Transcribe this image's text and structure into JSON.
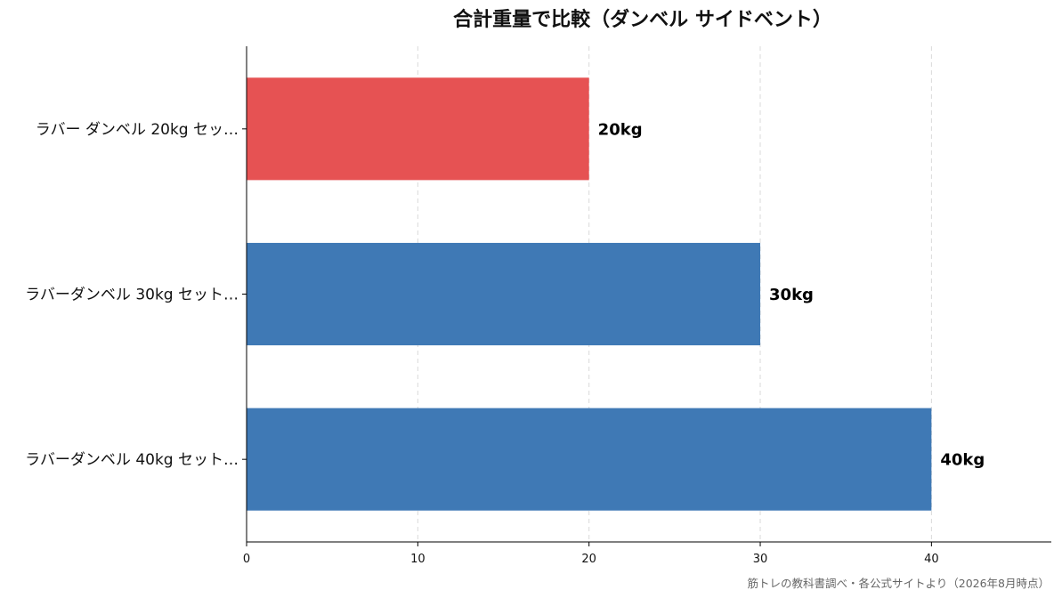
{
  "chart_data": {
    "type": "bar",
    "orientation": "horizontal",
    "title": "合計重量で比較（ダンベル サイドベント）",
    "categories": [
      "ラバー ダンベル 20kg セッ…",
      "ラバーダンベル 30kg セット…",
      "ラバーダンベル 40kg セット…"
    ],
    "values": [
      20,
      30,
      40
    ],
    "value_labels": [
      "20kg",
      "30kg",
      "40kg"
    ],
    "bar_colors": [
      "#e65253",
      "#3f79b5",
      "#3f79b5"
    ],
    "xlim": [
      0,
      47
    ],
    "xticks": [
      0,
      10,
      20,
      30,
      40
    ],
    "xlabel": "",
    "ylabel": "",
    "grid": "x-dashed",
    "legend": "none"
  },
  "footer": {
    "source": "筋トレの教科書調べ・各公式サイトより（2026年8月時点）"
  }
}
